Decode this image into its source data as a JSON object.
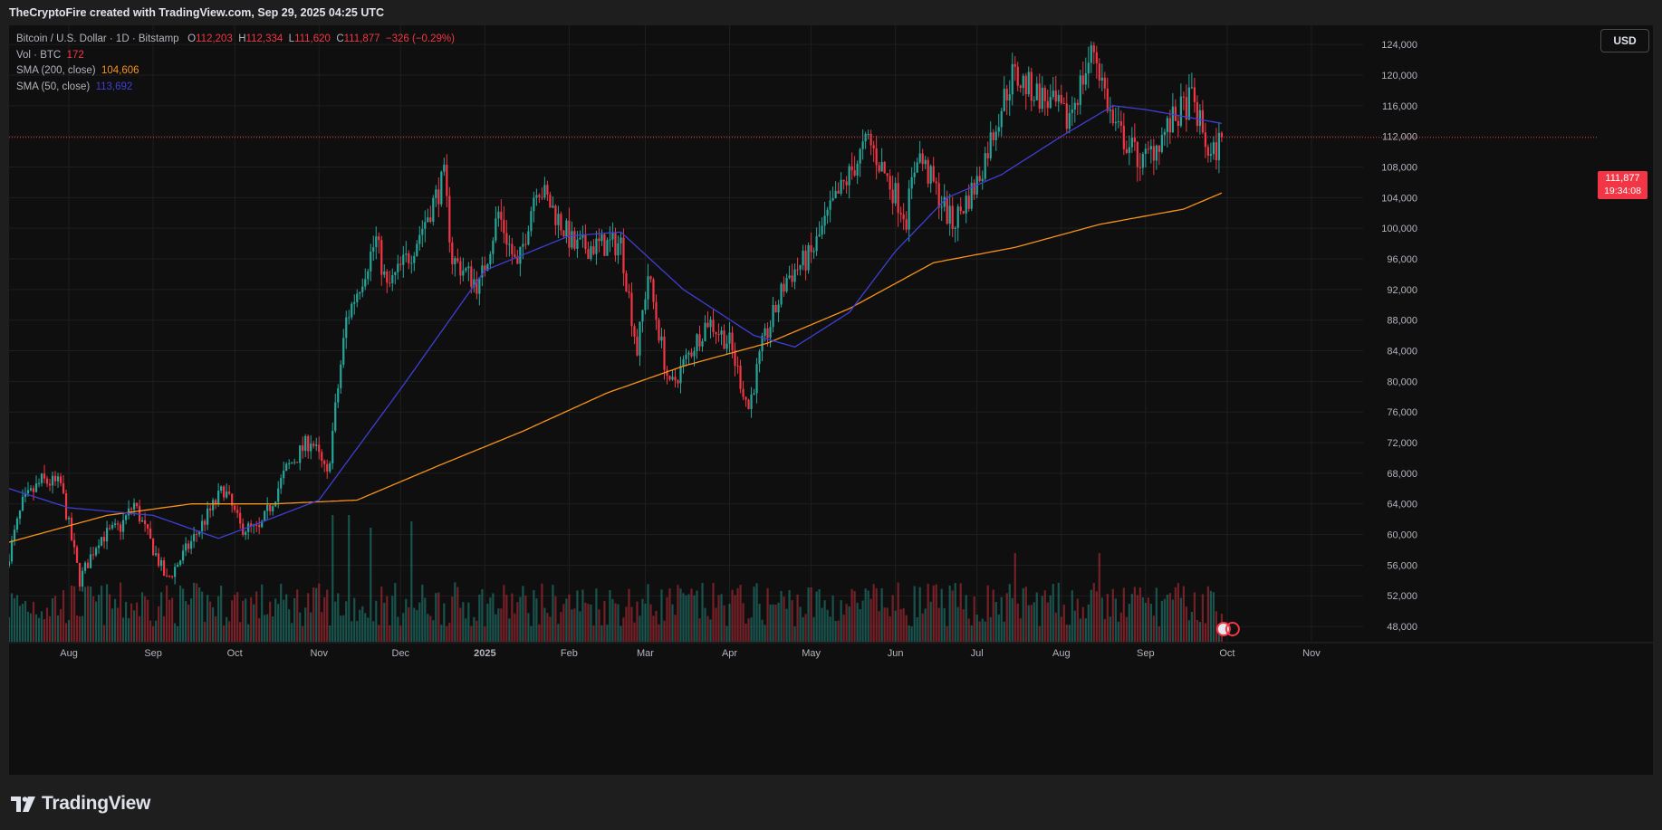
{
  "header": {
    "caption": "TheCryptoFire created with TradingView.com, Sep 29, 2025 04:25 UTC"
  },
  "legend": {
    "symbol": "Bitcoin / U.S. Dollar · 1D · Bitstamp",
    "o_label": "O",
    "o_value": "112,203",
    "h_label": "H",
    "h_value": "112,334",
    "l_label": "L",
    "l_value": "111,620",
    "c_label": "C",
    "c_value": "111,877",
    "change": "−326 (−0.29%)",
    "vol_label": "Vol · BTC",
    "vol_value": "172",
    "sma200_label": "SMA (200, close)",
    "sma200_value": "104,606",
    "sma50_label": "SMA (50, close)",
    "sma50_value": "113,692"
  },
  "currency_button": "USD",
  "price_tag": {
    "price": "111,877",
    "countdown": "19:34:08"
  },
  "footer": {
    "brand": "TradingView"
  },
  "colors": {
    "up": "#26a69a",
    "down": "#f23645",
    "sma200": "#f7931a",
    "sma50": "#3f3fd6",
    "background": "#0f0f0f"
  },
  "chart_data": {
    "type": "candlestick",
    "title": "Bitcoin / U.S. Dollar · 1D · Bitstamp",
    "x_ticks": [
      "Aug",
      "Sep",
      "Oct",
      "Nov",
      "Dec",
      "2025",
      "Feb",
      "Mar",
      "Apr",
      "May",
      "Jun",
      "Jul",
      "Aug",
      "Sep",
      "Oct",
      "Nov"
    ],
    "x_tick_dates": [
      "2024-08-01",
      "2024-09-01",
      "2024-10-01",
      "2024-11-01",
      "2024-12-01",
      "2025-01-01",
      "2025-02-01",
      "2025-03-01",
      "2025-04-01",
      "2025-05-01",
      "2025-06-01",
      "2025-07-01",
      "2025-08-01",
      "2025-09-01",
      "2025-10-01",
      "2025-11-01"
    ],
    "x_range": [
      "2024-07-10",
      "2025-11-20"
    ],
    "y_ticks": [
      48000,
      52000,
      56000,
      60000,
      64000,
      68000,
      72000,
      76000,
      80000,
      84000,
      88000,
      92000,
      96000,
      100000,
      104000,
      108000,
      112000,
      116000,
      120000,
      124000
    ],
    "y_tick_labels": [
      "48,000",
      "52,000",
      "56,000",
      "60,000",
      "64,000",
      "68,000",
      "72,000",
      "76,000",
      "80,000",
      "84,000",
      "88,000",
      "92,000",
      "96,000",
      "100,000",
      "104,000",
      "108,000",
      "112,000",
      "116,000",
      "120,000",
      "124,000"
    ],
    "y_range": [
      46000,
      126500
    ],
    "last_price": 111877,
    "close_anchors": [
      {
        "date": "2024-07-10",
        "close": 57500
      },
      {
        "date": "2024-07-15",
        "close": 64000
      },
      {
        "date": "2024-07-22",
        "close": 67000
      },
      {
        "date": "2024-07-29",
        "close": 66500
      },
      {
        "date": "2024-08-05",
        "close": 54000
      },
      {
        "date": "2024-08-12",
        "close": 59500
      },
      {
        "date": "2024-08-20",
        "close": 61000
      },
      {
        "date": "2024-08-25",
        "close": 64000
      },
      {
        "date": "2024-09-06",
        "close": 54000
      },
      {
        "date": "2024-09-15",
        "close": 59000
      },
      {
        "date": "2024-09-27",
        "close": 66000
      },
      {
        "date": "2024-10-03",
        "close": 61000
      },
      {
        "date": "2024-10-10",
        "close": 60500
      },
      {
        "date": "2024-10-20",
        "close": 68500
      },
      {
        "date": "2024-10-29",
        "close": 72500
      },
      {
        "date": "2024-11-04",
        "close": 67500
      },
      {
        "date": "2024-11-11",
        "close": 88000
      },
      {
        "date": "2024-11-22",
        "close": 98500
      },
      {
        "date": "2024-11-26",
        "close": 92000
      },
      {
        "date": "2024-12-05",
        "close": 97000
      },
      {
        "date": "2024-12-17",
        "close": 106500
      },
      {
        "date": "2024-12-20",
        "close": 96000
      },
      {
        "date": "2024-12-30",
        "close": 92500
      },
      {
        "date": "2025-01-06",
        "close": 102000
      },
      {
        "date": "2025-01-13",
        "close": 94500
      },
      {
        "date": "2025-01-20",
        "close": 106000
      },
      {
        "date": "2025-01-26",
        "close": 102500
      },
      {
        "date": "2025-02-03",
        "close": 97500
      },
      {
        "date": "2025-02-20",
        "close": 98000
      },
      {
        "date": "2025-02-26",
        "close": 84000
      },
      {
        "date": "2025-03-02",
        "close": 94000
      },
      {
        "date": "2025-03-10",
        "close": 79000
      },
      {
        "date": "2025-03-24",
        "close": 88000
      },
      {
        "date": "2025-04-01",
        "close": 85000
      },
      {
        "date": "2025-04-08",
        "close": 76500
      },
      {
        "date": "2025-04-13",
        "close": 84500
      },
      {
        "date": "2025-04-22",
        "close": 93500
      },
      {
        "date": "2025-05-01",
        "close": 96500
      },
      {
        "date": "2025-05-09",
        "close": 103000
      },
      {
        "date": "2025-05-22",
        "close": 111500
      },
      {
        "date": "2025-06-05",
        "close": 101500
      },
      {
        "date": "2025-06-09",
        "close": 110000
      },
      {
        "date": "2025-06-22",
        "close": 100500
      },
      {
        "date": "2025-07-01",
        "close": 106000
      },
      {
        "date": "2025-07-10",
        "close": 116000
      },
      {
        "date": "2025-07-14",
        "close": 120000
      },
      {
        "date": "2025-07-31",
        "close": 115500
      },
      {
        "date": "2025-08-03",
        "close": 114000
      },
      {
        "date": "2025-08-13",
        "close": 123500
      },
      {
        "date": "2025-08-20",
        "close": 113500
      },
      {
        "date": "2025-08-31",
        "close": 108500
      },
      {
        "date": "2025-09-10",
        "close": 113500
      },
      {
        "date": "2025-09-18",
        "close": 117000
      },
      {
        "date": "2025-09-25",
        "close": 109000
      },
      {
        "date": "2025-09-29",
        "close": 111877
      }
    ],
    "sma50_anchors": [
      {
        "date": "2024-07-10",
        "value": 66000
      },
      {
        "date": "2024-08-01",
        "value": 63500
      },
      {
        "date": "2024-09-01",
        "value": 62500
      },
      {
        "date": "2024-09-25",
        "value": 59500
      },
      {
        "date": "2024-10-10",
        "value": 61500
      },
      {
        "date": "2024-11-01",
        "value": 64500
      },
      {
        "date": "2024-12-01",
        "value": 79000
      },
      {
        "date": "2025-01-01",
        "value": 94500
      },
      {
        "date": "2025-02-01",
        "value": 99000
      },
      {
        "date": "2025-02-20",
        "value": 99500
      },
      {
        "date": "2025-03-15",
        "value": 92000
      },
      {
        "date": "2025-04-10",
        "value": 86000
      },
      {
        "date": "2025-04-25",
        "value": 84500
      },
      {
        "date": "2025-05-15",
        "value": 89000
      },
      {
        "date": "2025-06-01",
        "value": 97000
      },
      {
        "date": "2025-06-20",
        "value": 104000
      },
      {
        "date": "2025-07-10",
        "value": 107000
      },
      {
        "date": "2025-08-01",
        "value": 112000
      },
      {
        "date": "2025-08-20",
        "value": 116000
      },
      {
        "date": "2025-09-01",
        "value": 115500
      },
      {
        "date": "2025-09-29",
        "value": 113692
      }
    ],
    "sma200_anchors": [
      {
        "date": "2024-07-10",
        "value": 59000
      },
      {
        "date": "2024-08-15",
        "value": 62500
      },
      {
        "date": "2024-09-15",
        "value": 64000
      },
      {
        "date": "2024-10-15",
        "value": 64000
      },
      {
        "date": "2024-11-15",
        "value": 64500
      },
      {
        "date": "2024-12-15",
        "value": 69000
      },
      {
        "date": "2025-01-15",
        "value": 73500
      },
      {
        "date": "2025-02-15",
        "value": 78500
      },
      {
        "date": "2025-03-15",
        "value": 82000
      },
      {
        "date": "2025-04-15",
        "value": 85000
      },
      {
        "date": "2025-05-15",
        "value": 89500
      },
      {
        "date": "2025-06-15",
        "value": 95500
      },
      {
        "date": "2025-07-15",
        "value": 97500
      },
      {
        "date": "2025-08-15",
        "value": 100500
      },
      {
        "date": "2025-09-15",
        "value": 102500
      },
      {
        "date": "2025-09-29",
        "value": 104606
      }
    ],
    "volume_spikes": [
      {
        "date": "2024-11-06",
        "value": 1.0
      },
      {
        "date": "2024-11-12",
        "value": 1.0
      },
      {
        "date": "2024-11-20",
        "value": 0.9
      },
      {
        "date": "2024-12-05",
        "value": 0.95
      },
      {
        "date": "2025-07-15",
        "value": 0.7
      },
      {
        "date": "2025-08-15",
        "value": 0.7
      }
    ]
  }
}
